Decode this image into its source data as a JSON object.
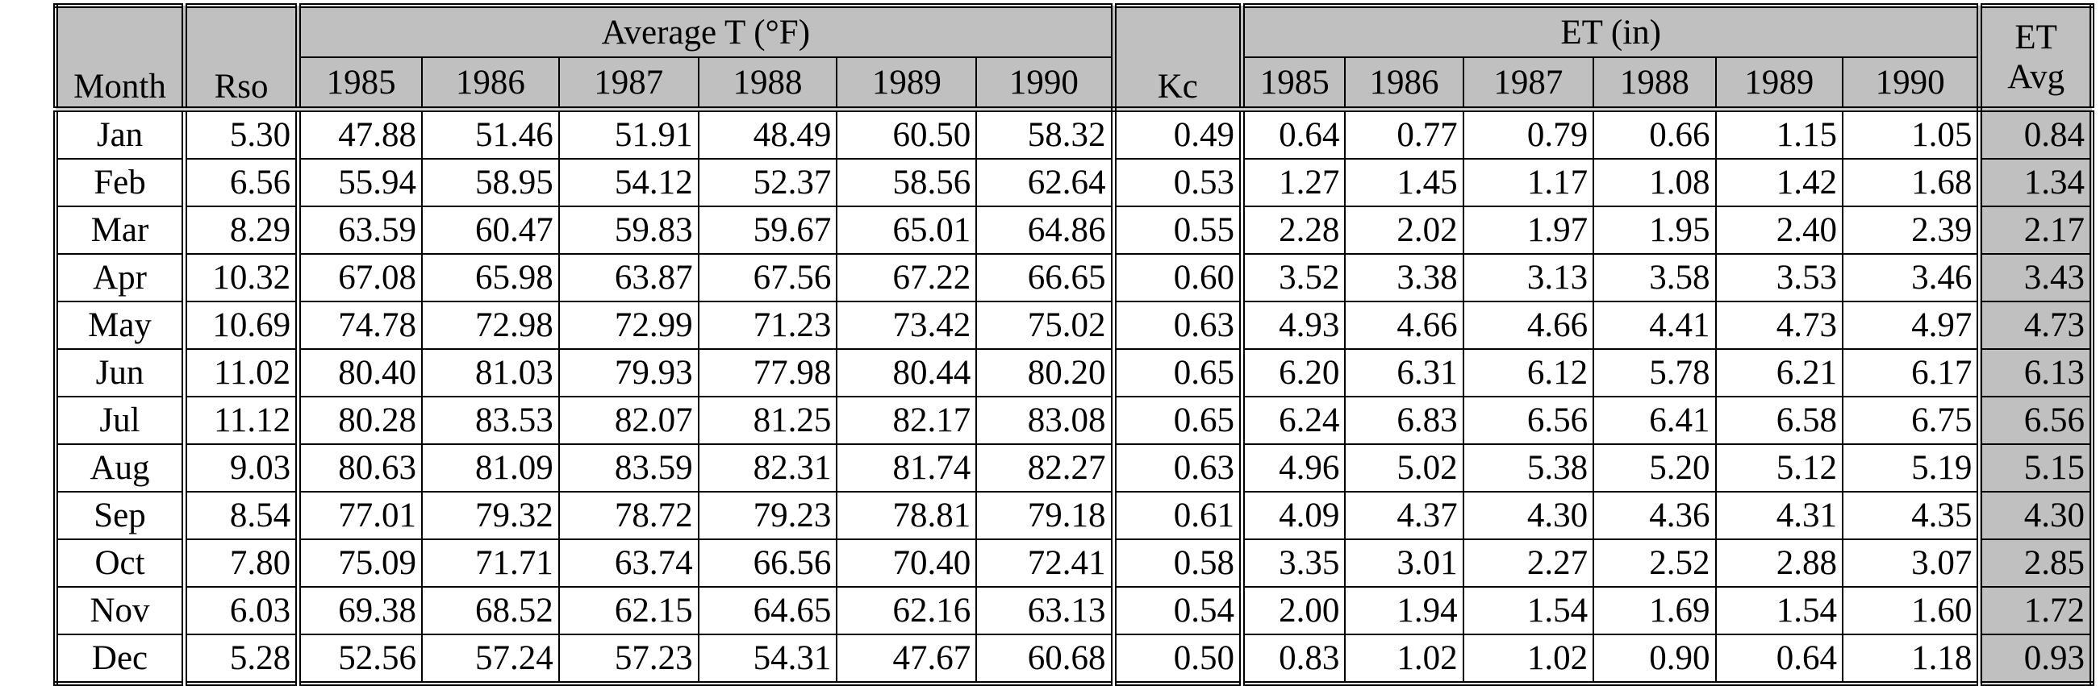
{
  "header": {
    "month": "Month",
    "rso": "Rso",
    "temperature_group": "Average T (°F)",
    "kc": "Kc",
    "et_group": "ET (in)",
    "et_avg": [
      "ET",
      "Avg"
    ],
    "temperature_years": [
      "1985",
      "1986",
      "1987",
      "1988",
      "1989",
      "1990"
    ],
    "et_years": [
      "1985",
      "1986",
      "1987",
      "1988",
      "1989",
      "1990"
    ]
  },
  "table": {
    "rows": [
      [
        "Jan",
        "5.30",
        "47.88",
        "51.46",
        "51.91",
        "48.49",
        "60.50",
        "58.32",
        "0.49",
        "0.64",
        "0.77",
        "0.79",
        "0.66",
        "1.15",
        "1.05",
        "0.84"
      ],
      [
        "Feb",
        "6.56",
        "55.94",
        "58.95",
        "54.12",
        "52.37",
        "58.56",
        "62.64",
        "0.53",
        "1.27",
        "1.45",
        "1.17",
        "1.08",
        "1.42",
        "1.68",
        "1.34"
      ],
      [
        "Mar",
        "8.29",
        "63.59",
        "60.47",
        "59.83",
        "59.67",
        "65.01",
        "64.86",
        "0.55",
        "2.28",
        "2.02",
        "1.97",
        "1.95",
        "2.40",
        "2.39",
        "2.17"
      ],
      [
        "Apr",
        "10.32",
        "67.08",
        "65.98",
        "63.87",
        "67.56",
        "67.22",
        "66.65",
        "0.60",
        "3.52",
        "3.38",
        "3.13",
        "3.58",
        "3.53",
        "3.46",
        "3.43"
      ],
      [
        "May",
        "10.69",
        "74.78",
        "72.98",
        "72.99",
        "71.23",
        "73.42",
        "75.02",
        "0.63",
        "4.93",
        "4.66",
        "4.66",
        "4.41",
        "4.73",
        "4.97",
        "4.73"
      ],
      [
        "Jun",
        "11.02",
        "80.40",
        "81.03",
        "79.93",
        "77.98",
        "80.44",
        "80.20",
        "0.65",
        "6.20",
        "6.31",
        "6.12",
        "5.78",
        "6.21",
        "6.17",
        "6.13"
      ],
      [
        "Jul",
        "11.12",
        "80.28",
        "83.53",
        "82.07",
        "81.25",
        "82.17",
        "83.08",
        "0.65",
        "6.24",
        "6.83",
        "6.56",
        "6.41",
        "6.58",
        "6.75",
        "6.56"
      ],
      [
        "Aug",
        "9.03",
        "80.63",
        "81.09",
        "83.59",
        "82.31",
        "81.74",
        "82.27",
        "0.63",
        "4.96",
        "5.02",
        "5.38",
        "5.20",
        "5.12",
        "5.19",
        "5.15"
      ],
      [
        "Sep",
        "8.54",
        "77.01",
        "79.32",
        "78.72",
        "79.23",
        "78.81",
        "79.18",
        "0.61",
        "4.09",
        "4.37",
        "4.30",
        "4.36",
        "4.31",
        "4.35",
        "4.30"
      ],
      [
        "Oct",
        "7.80",
        "75.09",
        "71.71",
        "63.74",
        "66.56",
        "70.40",
        "72.41",
        "0.58",
        "3.35",
        "3.01",
        "2.27",
        "2.52",
        "2.88",
        "3.07",
        "2.85"
      ],
      [
        "Nov",
        "6.03",
        "69.38",
        "68.52",
        "62.15",
        "64.65",
        "62.16",
        "63.13",
        "0.54",
        "2.00",
        "1.94",
        "1.54",
        "1.69",
        "1.54",
        "1.60",
        "1.72"
      ],
      [
        "Dec",
        "5.28",
        "52.56",
        "57.24",
        "57.23",
        "54.31",
        "47.67",
        "60.68",
        "0.50",
        "0.83",
        "1.02",
        "1.02",
        "0.90",
        "0.64",
        "1.18",
        "0.93"
      ]
    ]
  }
}
